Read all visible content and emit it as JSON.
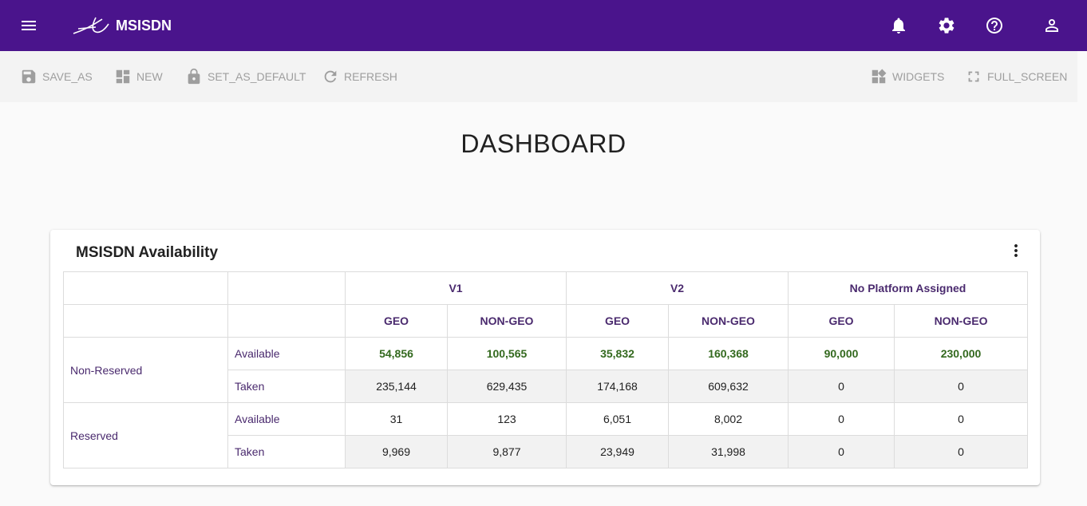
{
  "header": {
    "title": "MSISDN",
    "menu_icon": "menu-icon",
    "logo_icon": "logo-icon",
    "icons": [
      "bell-icon",
      "gear-icon",
      "help-icon",
      "account-icon"
    ],
    "background_color": "#4a148c"
  },
  "toolbar": {
    "left_buttons": [
      {
        "label": "SAVE_AS",
        "icon": "save-icon"
      },
      {
        "label": "NEW",
        "icon": "dashboard-icon"
      },
      {
        "label": "SET_AS_DEFAULT",
        "icon": "lock-icon"
      },
      {
        "label": "REFRESH",
        "icon": "refresh-icon"
      }
    ],
    "right_buttons": [
      {
        "label": "WIDGETS",
        "icon": "widgets-icon"
      },
      {
        "label": "FULL_SCREEN",
        "icon": "fullscreen-icon"
      }
    ]
  },
  "page": {
    "title": "DASHBOARD"
  },
  "widget": {
    "title": "MSISDN Availability",
    "menu_icon": "more-vert-icon",
    "platforms": [
      "V1",
      "V2",
      "No Platform Assigned"
    ],
    "subheaders": [
      "GEO",
      "NON-GEO",
      "GEO",
      "NON-GEO",
      "GEO",
      "NON-GEO"
    ],
    "groups": [
      {
        "label": "Non-Reserved",
        "rows": [
          {
            "label": "Available",
            "values": [
              "54,856",
              "100,565",
              "35,832",
              "160,368",
              "90,000",
              "230,000"
            ]
          },
          {
            "label": "Taken",
            "values": [
              "235,144",
              "629,435",
              "174,168",
              "609,632",
              "0",
              "0"
            ]
          }
        ]
      },
      {
        "label": "Reserved",
        "rows": [
          {
            "label": "Available",
            "values": [
              "31",
              "123",
              "6,051",
              "8,002",
              "0",
              "0"
            ]
          },
          {
            "label": "Taken",
            "values": [
              "9,969",
              "9,877",
              "23,949",
              "31,998",
              "0",
              "0"
            ]
          }
        ]
      }
    ],
    "highlight_color": "#33691e"
  }
}
